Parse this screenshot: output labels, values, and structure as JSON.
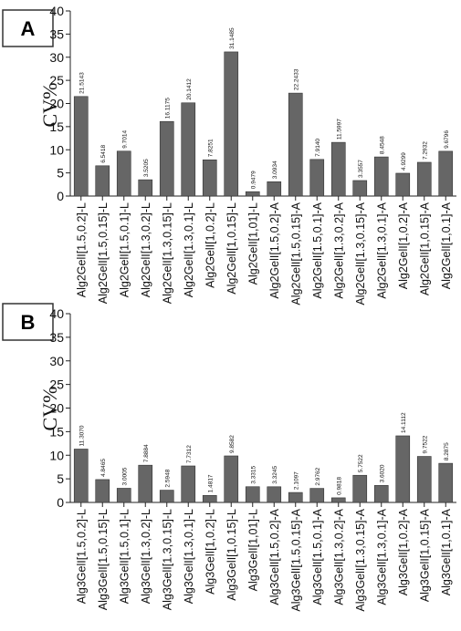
{
  "chart_data": [
    {
      "panel": "A",
      "type": "bar",
      "ylabel": "CV%",
      "ylim": [
        0,
        40
      ],
      "yticks": [
        0,
        5,
        10,
        15,
        20,
        25,
        30,
        35,
        40
      ],
      "bar_color": "#666666",
      "categories": [
        "Alg2GelI[1.5,0.2]-L",
        "Alg2GelI[1.5,0.15]-L",
        "Alg2GelI[1.5,0.1]-L",
        "Alg2GelI[1.3,0.2]-L",
        "Alg2GelI[1.3,0.15]-L",
        "Alg2GelI[1.3,0.1]-L",
        "Alg2GelI[1,0.2]-L",
        "Alg2GelI[1,0.15]-L",
        "Alg2GelI[1,01]-L",
        "Alg2GelI[1.5,0.2]-A",
        "Alg2GelI[1.5,0.15]-A",
        "Alg2GelI[1.5,0.1]-A",
        "Alg2GelI[1.3,0.2]-A",
        "Alg2GelI[1.3,0.15]-A",
        "Alg2GelI[1.3,0.1]-A",
        "Alg2GelI[1,0.2]-A",
        "Alg2GelI[1,0.15]-A",
        "Alg2GelI[1,0.1]-A"
      ],
      "values": [
        21.5143,
        6.5418,
        9.7014,
        3.5205,
        16.1175,
        20.1412,
        7.8251,
        31.1485,
        0.9479,
        3.0934,
        22.2433,
        7.914,
        11.5997,
        3.3557,
        8.4548,
        4.9299,
        7.2932,
        9.6796
      ],
      "labels": [
        "21.5143",
        "6.5418",
        "9.7014",
        "3.5205",
        "16.1175",
        "20.1412",
        "7.8251",
        "31.1485",
        "0.9479",
        "3.0934",
        "22.2433",
        "7.9140",
        "11.5997",
        "3.3557",
        "8.4548",
        "4.9299",
        "7.2932",
        "9.6796"
      ]
    },
    {
      "panel": "B",
      "type": "bar",
      "ylabel": "CV%",
      "ylim": [
        0,
        40
      ],
      "yticks": [
        0,
        5,
        10,
        15,
        20,
        25,
        30,
        35,
        40
      ],
      "bar_color": "#666666",
      "categories": [
        "Alg3GelI[1.5,0.2]-L",
        "Alg3GelI[1.5,0.15]-L",
        "Alg3GelI[1.5,0.1]-L",
        "Alg3GelI[1.3,0.2]-L",
        "Alg3GelI[1.3,0.15]-L",
        "Alg3GelI[1.3,0.1]-L",
        "Alg3GelI[1,0.2]-L",
        "Alg3GelI[1,0.15]-L",
        "Alg3GelI[1,01]-L",
        "Alg3GelI[1.5,0.2]-A",
        "Alg3GelI[1.5,0.15]-A",
        "Alg3GelI[1.5,0.1]-A",
        "Alg3GelI[1.3,0.2]-A",
        "Alg3GelI[1.3,0.15]-A",
        "Alg3GelI[1.3,0.1]-A",
        "Alg3GelI[1,0.2]-A",
        "Alg3GelI[1,0.15]-A",
        "Alg3GelI[1,0.1]-A"
      ],
      "values": [
        11.307,
        4.8465,
        3.0005,
        7.8884,
        2.5948,
        7.7312,
        1.4817,
        9.8582,
        3.3315,
        3.3245,
        2.1097,
        2.9762,
        0.9818,
        5.7522,
        3.602,
        14.1112,
        9.7522,
        8.2875
      ],
      "labels": [
        "11.3070",
        "4.8465",
        "3.0005",
        "7.8884",
        "2.5948",
        "7.7312",
        "1.4817",
        "9.8582",
        "3.3315",
        "3.3245",
        "2.1097",
        "2.9762",
        "0.9818",
        "5.7522",
        "3.6020",
        "14.1112",
        "9.7522",
        "8.2875"
      ]
    }
  ]
}
